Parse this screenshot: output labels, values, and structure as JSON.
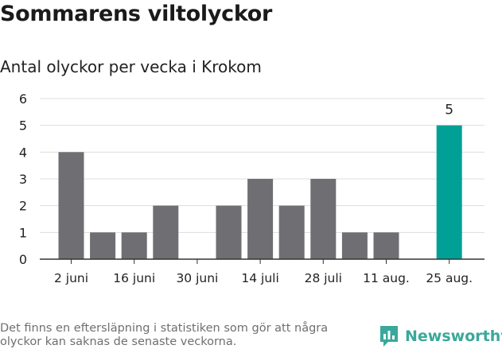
{
  "header": {
    "title": "Sommarens viltolyckor",
    "subtitle": "Antal olyckor per vecka i Krokom"
  },
  "footer": {
    "note": "Det finns en eftersläpning i statistiken som gör att några olyckor kan saknas de senaste veckorna.",
    "brand": "Newsworthy"
  },
  "colors": {
    "bar": "#6f6e73",
    "highlight": "#00a096",
    "grid": "#dddddd",
    "axis": "#333333",
    "brand": "#3aa89a"
  },
  "chart_data": {
    "type": "bar",
    "title": "Sommarens viltolyckor",
    "subtitle": "Antal olyckor per vecka i Krokom",
    "xlabel": "",
    "ylabel": "",
    "ylim": [
      0,
      6
    ],
    "yticks": [
      0,
      1,
      2,
      3,
      4,
      5,
      6
    ],
    "grid": true,
    "values": [
      4,
      1,
      1,
      2,
      0,
      2,
      3,
      2,
      3,
      1,
      1,
      0,
      5
    ],
    "tick_labels": [
      {
        "index": 0,
        "label": "2 juni"
      },
      {
        "index": 2,
        "label": "16 juni"
      },
      {
        "index": 4,
        "label": "30 juni"
      },
      {
        "index": 6,
        "label": "14 juli"
      },
      {
        "index": 8,
        "label": "28 juli"
      },
      {
        "index": 10,
        "label": "11 aug."
      },
      {
        "index": 12,
        "label": "25 aug."
      }
    ],
    "highlight_index": 12,
    "data_labels": [
      {
        "index": 12,
        "label": "5"
      }
    ]
  }
}
